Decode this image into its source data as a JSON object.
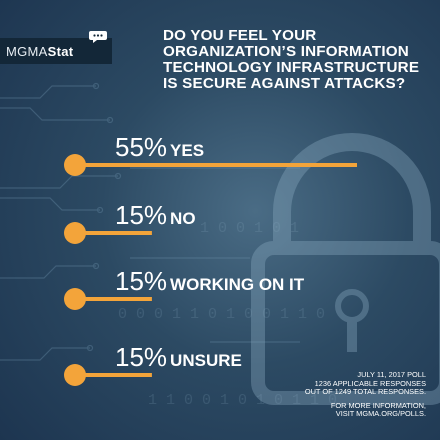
{
  "brand": {
    "logo_light": "MGMA",
    "logo_bold": "Stat"
  },
  "header": {
    "title": "DO YOU FEEL YOUR ORGANIZATION’S INFORMATION TECHNOLOGY INFRASTRUCTURE IS SECURE AGAINST ATTACKS?"
  },
  "colors": {
    "accent": "#f3a43a",
    "background": "#2c4a63",
    "text": "#ffffff"
  },
  "chart_data": {
    "type": "bar",
    "title": "DO YOU FEEL YOUR ORGANIZATION’S INFORMATION TECHNOLOGY INFRASTRUCTURE IS SECURE AGAINST ATTACKS?",
    "categories": [
      "YES",
      "NO",
      "WORKING ON IT",
      "UNSURE"
    ],
    "values": [
      55,
      15,
      15,
      15
    ],
    "value_labels": [
      "55%",
      "15%",
      "15%",
      "15%"
    ],
    "unit": "%",
    "xlim": [
      0,
      55
    ],
    "grid": false,
    "legend": "none"
  },
  "footer": {
    "line1": "JULY 11, 2017 POLL",
    "line2": "1236 APPLICABLE RESPONSES",
    "line3": "OUT OF 1249 TOTAL RESPONSES.",
    "line4": "FOR MORE INFORMATION,",
    "line5": "VISIT MGMA.ORG/POLLS."
  }
}
